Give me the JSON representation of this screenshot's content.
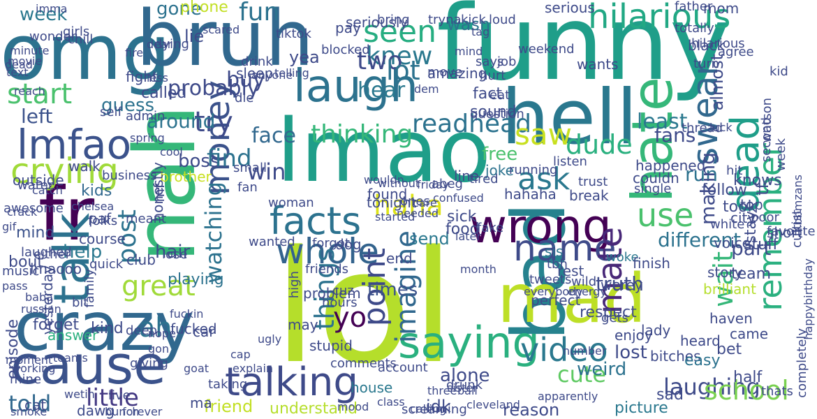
{
  "words": [
    {
      "text": "funny",
      "color": "#1f9e89"
    },
    {
      "text": "omg",
      "color": "#2c728e"
    },
    {
      "text": "bruh",
      "color": "#31688e"
    },
    {
      "text": "lmao",
      "color": "#1f9e89"
    },
    {
      "text": "lol",
      "color": "#b5de2b"
    },
    {
      "text": "crazy",
      "color": "#31688e"
    },
    {
      "text": "nah",
      "color": "#35b779"
    },
    {
      "text": "bad",
      "color": "#26828e"
    },
    {
      "text": "hell",
      "color": "#2a788e"
    },
    {
      "text": "fr",
      "color": "#440154"
    },
    {
      "text": "mad",
      "color": "#bddf26"
    },
    {
      "text": "cause",
      "color": "#3b528b"
    },
    {
      "text": "wrong",
      "color": "#440154"
    },
    {
      "text": "hate",
      "color": "#35b779"
    },
    {
      "text": "talking",
      "color": "#3e4a89"
    },
    {
      "text": "saying",
      "color": "#2ab07f"
    },
    {
      "text": "hilarious",
      "color": "#22a884"
    },
    {
      "text": "laugh",
      "color": "#2c728e"
    },
    {
      "text": "seen",
      "color": "#26ad81"
    },
    {
      "text": "money",
      "color": "#3b528b"
    },
    {
      "text": "facts",
      "color": "#2c728e"
    },
    {
      "text": "video",
      "color": "#2a788e"
    },
    {
      "text": "lmfao",
      "color": "#3b528b"
    },
    {
      "text": "crying",
      "color": "#a0da39"
    },
    {
      "text": "talk",
      "color": "#2c728e"
    },
    {
      "text": "whole",
      "color": "#33638d"
    },
    {
      "text": "start",
      "color": "#4ac16d"
    },
    {
      "text": "probably",
      "color": "#3e4a89"
    },
    {
      "text": "knew",
      "color": "#2a788e"
    },
    {
      "text": "readhead",
      "color": "#2c728e"
    },
    {
      "text": "dude",
      "color": "#2ab07f"
    },
    {
      "text": "swear",
      "color": "#31688e"
    },
    {
      "text": "dead",
      "color": "#1f9e89"
    },
    {
      "text": "remember",
      "color": "#2ab07f"
    },
    {
      "text": "great",
      "color": "#a0da39"
    },
    {
      "text": "name",
      "color": "#3e4a89"
    },
    {
      "text": "ask",
      "color": "#2a788e"
    },
    {
      "text": "week",
      "color": "#2a788e"
    },
    {
      "text": "fun",
      "color": "#2c728e"
    },
    {
      "text": "use",
      "color": "#4ac16d"
    },
    {
      "text": "cute",
      "color": "#5ec962"
    },
    {
      "text": "laughing",
      "color": "#3e4a89"
    },
    {
      "text": "told",
      "color": "#31688e"
    },
    {
      "text": "little",
      "color": "#443983"
    },
    {
      "text": "haha",
      "color": "#dde318"
    },
    {
      "text": "wait",
      "color": "#35b779"
    },
    {
      "text": "try",
      "color": "#3e4a89"
    },
    {
      "text": "face",
      "color": "#31688e"
    },
    {
      "text": "two",
      "color": "#3e4a89"
    },
    {
      "text": "hear",
      "color": "#2a788e"
    },
    {
      "text": "saw",
      "color": "#c8e020"
    },
    {
      "text": "win",
      "color": "#3e4a89"
    },
    {
      "text": "left",
      "color": "#3b528b"
    },
    {
      "text": "guess",
      "color": "#2c728e"
    },
    {
      "text": "lot",
      "color": "#2c728e"
    },
    {
      "text": "mate",
      "color": "#482878"
    },
    {
      "text": "post",
      "color": "#2c728e"
    },
    {
      "text": "kids",
      "color": "#31688e"
    },
    {
      "text": "ah",
      "color": "#2c728e"
    },
    {
      "text": "understand",
      "color": "#b5de2b"
    },
    {
      "text": "friend",
      "color": "#c2df23"
    },
    {
      "text": "imagine",
      "color": "#31688e"
    },
    {
      "text": "point",
      "color": "#3e4a89"
    },
    {
      "text": "things",
      "color": "#2c728e"
    },
    {
      "text": "yo",
      "color": "#440154"
    },
    {
      "text": "watching",
      "color": "#2c728e"
    },
    {
      "text": "school",
      "color": "#7ad151"
    },
    {
      "text": "thinking",
      "color": "#35b779"
    },
    {
      "text": "around",
      "color": "#2c728e"
    },
    {
      "text": "boss",
      "color": "#3e4a89"
    },
    {
      "text": "find",
      "color": "#2c728e"
    },
    {
      "text": "fans",
      "color": "#3e4a89"
    },
    {
      "text": "least",
      "color": "#2a788e"
    },
    {
      "text": "mind",
      "color": "#3b528b"
    },
    {
      "text": "help",
      "color": "#2a788e"
    },
    {
      "text": "hair",
      "color": "#3e4a89"
    },
    {
      "text": "end",
      "color": "#3e4a89"
    },
    {
      "text": "times",
      "color": "#3b528b"
    },
    {
      "text": "send",
      "color": "#2a788e"
    },
    {
      "text": "different",
      "color": "#2c728e"
    },
    {
      "text": "part",
      "color": "#3e4a89"
    },
    {
      "text": "run",
      "color": "#2c728e"
    },
    {
      "text": "buy",
      "color": "#3e4a89"
    },
    {
      "text": "gone",
      "color": "#2c728e"
    },
    {
      "text": "phone",
      "color": "#c2df23"
    },
    {
      "text": "wasn",
      "color": "#2c728e"
    },
    {
      "text": "bout",
      "color": "#3e4a89"
    },
    {
      "text": "brother",
      "color": "#c8e020"
    },
    {
      "text": "stupid",
      "color": "#3e4a89"
    },
    {
      "text": "playing",
      "color": "#2c728e"
    },
    {
      "text": "alone",
      "color": "#3e4a89"
    },
    {
      "text": "idk",
      "color": "#3e4a89"
    },
    {
      "text": "house",
      "color": "#2a788e"
    },
    {
      "text": "weird",
      "color": "#2c728e"
    },
    {
      "text": "bitches",
      "color": "#3e4a89"
    },
    {
      "text": "half",
      "color": "#3e4a89"
    },
    {
      "text": "picture",
      "color": "#2a788e"
    },
    {
      "text": "reason",
      "color": "#3e4a89"
    },
    {
      "text": "lost",
      "color": "#3e4a89"
    },
    {
      "text": "enjoy",
      "color": "#3e4a89"
    },
    {
      "text": "brilliant",
      "color": "#b5de2b"
    },
    {
      "text": "woke",
      "color": "#2a788e"
    },
    {
      "text": "sis",
      "color": "#2c728e"
    },
    {
      "text": "truth",
      "color": "#3e4a89"
    },
    {
      "text": "follow",
      "color": "#3e4a89"
    },
    {
      "text": "sad",
      "color": "#3e4a89"
    },
    {
      "text": "easy",
      "color": "#2c728e"
    },
    {
      "text": "job",
      "color": "#3e4a89"
    },
    {
      "text": "fake",
      "color": "#3e4a89"
    },
    {
      "text": "food",
      "color": "#3e4a89"
    },
    {
      "text": "sick",
      "color": "#3e4a89"
    },
    {
      "text": "sound",
      "color": "#3e4a89"
    },
    {
      "text": "free",
      "color": "#4ac16d"
    },
    {
      "text": "joke",
      "color": "#2c728e"
    },
    {
      "text": "tired",
      "color": "#3e4a89"
    },
    {
      "text": "hurt",
      "color": "#3e4a89"
    },
    {
      "text": "says",
      "color": "#3e4a89"
    },
    {
      "text": "fact",
      "color": "#3e4a89"
    },
    {
      "text": "mf",
      "color": "#3e4a89"
    },
    {
      "text": "honestly",
      "color": "#3e4a89"
    },
    {
      "text": "called",
      "color": "#3e4a89"
    },
    {
      "text": "cool",
      "color": "#3e4a89"
    },
    {
      "text": "small",
      "color": "#3e4a89"
    },
    {
      "text": "fan",
      "color": "#3e4a89"
    },
    {
      "text": "wanted",
      "color": "#3e4a89"
    },
    {
      "text": "woman",
      "color": "#3e4a89"
    },
    {
      "text": "lose",
      "color": "#3e4a89"
    },
    {
      "text": "lmaooo",
      "color": "#3e4a89"
    },
    {
      "text": "answer",
      "color": "#2ab07f"
    },
    {
      "text": "forget",
      "color": "#3e4a89"
    },
    {
      "text": "bit",
      "color": "#3e4a89"
    },
    {
      "text": "kind",
      "color": "#3e4a89"
    },
    {
      "text": "car",
      "color": "#3e4a89"
    },
    {
      "text": "wetin",
      "color": "#3e4a89"
    },
    {
      "text": "dawg",
      "color": "#3e4a89"
    },
    {
      "text": "may",
      "color": "#3e4a89"
    },
    {
      "text": "problem",
      "color": "#3e4a89"
    },
    {
      "text": "high",
      "color": "#3e4a89"
    },
    {
      "text": "friends",
      "color": "#3e4a89"
    },
    {
      "text": "comments",
      "color": "#3e4a89"
    },
    {
      "text": "drunk",
      "color": "#3e4a89"
    },
    {
      "text": "account",
      "color": "#3e4a89"
    },
    {
      "text": "taking",
      "color": "#3e4a89"
    },
    {
      "text": "ma",
      "color": "#3e4a89"
    },
    {
      "text": "eat",
      "color": "#3e4a89"
    },
    {
      "text": "thats",
      "color": "#3e4a89"
    },
    {
      "text": "heard",
      "color": "#3e4a89"
    },
    {
      "text": "bet",
      "color": "#3e4a89"
    },
    {
      "text": "came",
      "color": "#3e4a89"
    },
    {
      "text": "haven",
      "color": "#3e4a89"
    },
    {
      "text": "team",
      "color": "#3e4a89"
    },
    {
      "text": "stay",
      "color": "#3e4a89"
    },
    {
      "text": "top",
      "color": "#3e4a89"
    },
    {
      "text": "hit",
      "color": "#3e4a89"
    },
    {
      "text": "mom",
      "color": "#3e4a89"
    },
    {
      "text": "black",
      "color": "#3e4a89"
    },
    {
      "text": "agree",
      "color": "#3e4a89"
    },
    {
      "text": "story",
      "color": "#3e4a89"
    },
    {
      "text": "stuff",
      "color": "#3e4a89"
    },
    {
      "text": "took",
      "color": "#3e4a89"
    },
    {
      "text": "knows",
      "color": "#3e4a89"
    },
    {
      "text": "happened",
      "color": "#3e4a89"
    },
    {
      "text": "making",
      "color": "#3e4a89"
    },
    {
      "text": "tf",
      "color": "#3e4a89"
    },
    {
      "text": "city",
      "color": "#3e4a89"
    },
    {
      "text": "wants",
      "color": "#3e4a89"
    },
    {
      "text": "weekend",
      "color": "#3e4a89"
    },
    {
      "text": "question",
      "color": "#3e4a89"
    },
    {
      "text": "seriously",
      "color": "#3e4a89"
    },
    {
      "text": "blocked",
      "color": "#3e4a89"
    },
    {
      "text": "pay",
      "color": "#3e4a89"
    },
    {
      "text": "yea",
      "color": "#3e4a89"
    },
    {
      "text": "lie",
      "color": "#3e4a89"
    },
    {
      "text": "sleep",
      "color": "#3e4a89"
    },
    {
      "text": "die",
      "color": "#3e4a89"
    },
    {
      "text": "drink",
      "color": "#3e4a89"
    },
    {
      "text": "chill",
      "color": "#3e4a89"
    },
    {
      "text": "girls",
      "color": "#3e4a89"
    },
    {
      "text": "wonder",
      "color": "#3e4a89"
    },
    {
      "text": "outside",
      "color": "#3e4a89"
    },
    {
      "text": "course",
      "color": "#3e4a89"
    },
    {
      "text": "walk",
      "color": "#3e4a89"
    },
    {
      "text": "either",
      "color": "#3e4a89"
    },
    {
      "text": "club",
      "color": "#3e4a89"
    },
    {
      "text": "folks",
      "color": "#3e4a89"
    },
    {
      "text": "yesterday",
      "color": "#3e4a89"
    },
    {
      "text": "episode",
      "color": "#3e4a89"
    },
    {
      "text": "mine",
      "color": "#3e4a89"
    },
    {
      "text": "live",
      "color": "#3e4a89"
    },
    {
      "text": "giving",
      "color": "#3e4a89"
    },
    {
      "text": "cat",
      "color": "#3e4a89"
    },
    {
      "text": "deep",
      "color": "#3e4a89"
    },
    {
      "text": "fucked",
      "color": "#3e4a89"
    },
    {
      "text": "respect",
      "color": "#3e4a89"
    },
    {
      "text": "werey",
      "color": "#3e4a89"
    },
    {
      "text": "perfect",
      "color": "#3e4a89"
    },
    {
      "text": "tweets",
      "color": "#3e4a89"
    },
    {
      "text": "wild",
      "color": "#3e4a89"
    },
    {
      "text": "tbh",
      "color": "#3e4a89"
    },
    {
      "text": "rest",
      "color": "#3e4a89"
    },
    {
      "text": "dog",
      "color": "#3e4a89"
    },
    {
      "text": "forgot",
      "color": "#3e4a89"
    },
    {
      "text": "hours",
      "color": "#3e4a89"
    },
    {
      "text": "cuz",
      "color": "#3e4a89"
    },
    {
      "text": "gets",
      "color": "#3e4a89"
    },
    {
      "text": "lady",
      "color": "#3e4a89"
    },
    {
      "text": "voice",
      "color": "#3e4a89"
    },
    {
      "text": "white",
      "color": "#3e4a89"
    },
    {
      "text": "poor",
      "color": "#3e4a89"
    },
    {
      "text": "short",
      "color": "#3e4a89"
    },
    {
      "text": "favorite",
      "color": "#3e4a89"
    },
    {
      "text": "finish",
      "color": "#3e4a89"
    },
    {
      "text": "couldn",
      "color": "#3e4a89"
    },
    {
      "text": "single",
      "color": "#3e4a89"
    },
    {
      "text": "trust",
      "color": "#3e4a89"
    },
    {
      "text": "break",
      "color": "#3e4a89"
    },
    {
      "text": "hahaha",
      "color": "#3e4a89"
    },
    {
      "text": "line",
      "color": "#3e4a89"
    },
    {
      "text": "abeg",
      "color": "#3e4a89"
    },
    {
      "text": "found",
      "color": "#3e4a89"
    },
    {
      "text": "wouldn",
      "color": "#3e4a89"
    },
    {
      "text": "started",
      "color": "#3e4a89"
    },
    {
      "text": "tonight",
      "color": "#3e4a89"
    },
    {
      "text": "without",
      "color": "#3e4a89"
    },
    {
      "text": "bring",
      "color": "#3e4a89"
    },
    {
      "text": "tryna",
      "color": "#3e4a89"
    },
    {
      "text": "kick",
      "color": "#3e4a89"
    },
    {
      "text": "loud",
      "color": "#3e4a89"
    },
    {
      "text": "serious",
      "color": "#3e4a89"
    },
    {
      "text": "father",
      "color": "#3e4a89"
    },
    {
      "text": "totally",
      "color": "#3e4a89"
    },
    {
      "text": "kid",
      "color": "#3e4a89"
    },
    {
      "text": "second",
      "color": "#3e4a89"
    },
    {
      "text": "almost",
      "color": "#3e4a89"
    },
    {
      "text": "turn",
      "color": "#3e4a89"
    },
    {
      "text": "hilarious",
      "color": "#3e4a89"
    },
    {
      "text": "luck",
      "color": "#3e4a89"
    },
    {
      "text": "thread",
      "color": "#3e4a89"
    },
    {
      "text": "week",
      "color": "#3e4a89"
    },
    {
      "text": "bbmzans",
      "color": "#3e4a89"
    },
    {
      "text": "cultist",
      "color": "#3e4a89"
    },
    {
      "text": "watson",
      "color": "#3e4a89"
    },
    {
      "text": "happybirthday",
      "color": "#3e4a89"
    },
    {
      "text": "completely",
      "color": "#3e4a89"
    },
    {
      "text": "music",
      "color": "#3e4a89"
    },
    {
      "text": "pass",
      "color": "#3e4a89"
    },
    {
      "text": "meant",
      "color": "#3e4a89"
    },
    {
      "text": "quick",
      "color": "#3e4a89"
    },
    {
      "text": "paf",
      "color": "#3e4a89"
    },
    {
      "text": "family",
      "color": "#3e4a89"
    },
    {
      "text": "laughed",
      "color": "#3e4a89"
    },
    {
      "text": "gif",
      "color": "#3e4a89"
    },
    {
      "text": "water",
      "color": "#3e4a89"
    },
    {
      "text": "crack",
      "color": "#3e4a89"
    },
    {
      "text": "awesome",
      "color": "#3e4a89"
    },
    {
      "text": "chelsea",
      "color": "#3e4a89"
    },
    {
      "text": "catch",
      "color": "#3e4a89"
    },
    {
      "text": "business",
      "color": "#3e4a89"
    },
    {
      "text": "spring",
      "color": "#3e4a89"
    },
    {
      "text": "admin",
      "color": "#3e4a89"
    },
    {
      "text": "self",
      "color": "#3e4a89"
    },
    {
      "text": "fight",
      "color": "#3e4a89"
    },
    {
      "text": "less",
      "color": "#3e4a89"
    },
    {
      "text": "fire",
      "color": "#3e4a89"
    },
    {
      "text": "dear",
      "color": "#3e4a89"
    },
    {
      "text": "dying",
      "color": "#3e4a89"
    },
    {
      "text": "reach",
      "color": "#3e4a89"
    },
    {
      "text": "minute",
      "color": "#3e4a89"
    },
    {
      "text": "movie",
      "color": "#3e4a89"
    },
    {
      "text": "text",
      "color": "#3e4a89"
    },
    {
      "text": "dead",
      "color": "#3e4a89"
    },
    {
      "text": "imma",
      "color": "#3e4a89"
    },
    {
      "text": "scared",
      "color": "#3e4a89"
    },
    {
      "text": "tiktok",
      "color": "#3e4a89"
    },
    {
      "text": "anyone",
      "color": "#3e4a89"
    },
    {
      "text": "telling",
      "color": "#3e4a89"
    },
    {
      "text": "dem",
      "color": "#3e4a89"
    },
    {
      "text": "amazing",
      "color": "#3e4a89"
    },
    {
      "text": "move",
      "color": "#3e4a89"
    },
    {
      "text": "tag",
      "color": "#3e4a89"
    },
    {
      "text": "mind",
      "color": "#3e4a89"
    },
    {
      "text": "running",
      "color": "#3e4a89"
    },
    {
      "text": "listen",
      "color": "#3e4a89"
    },
    {
      "text": "friday",
      "color": "#3e4a89"
    },
    {
      "text": "ones",
      "color": "#3e4a89"
    },
    {
      "text": "needed",
      "color": "#3e4a89"
    },
    {
      "text": "care",
      "color": "#3e4a89"
    },
    {
      "text": "confused",
      "color": "#3e4a89"
    },
    {
      "text": "later",
      "color": "#3e4a89"
    },
    {
      "text": "month",
      "color": "#3e4a89"
    },
    {
      "text": "everybody",
      "color": "#3e4a89"
    },
    {
      "text": "energy",
      "color": "#3e4a89"
    },
    {
      "text": "number",
      "color": "#3e4a89"
    },
    {
      "text": "apparently",
      "color": "#3e4a89"
    },
    {
      "text": "cleveland",
      "color": "#3e4a89"
    },
    {
      "text": "sister",
      "color": "#3e4a89"
    },
    {
      "text": "ball",
      "color": "#3e4a89"
    },
    {
      "text": "three",
      "color": "#3e4a89"
    },
    {
      "text": "class",
      "color": "#3e4a89"
    },
    {
      "text": "mood",
      "color": "#3e4a89"
    },
    {
      "text": "screaming",
      "color": "#3e4a89"
    },
    {
      "text": "calling",
      "color": "#3e4a89"
    },
    {
      "text": "bunch",
      "color": "#3e4a89"
    },
    {
      "text": "smoke",
      "color": "#3e4a89"
    },
    {
      "text": "forever",
      "color": "#3e4a89"
    },
    {
      "text": "explain",
      "color": "#3e4a89"
    },
    {
      "text": "goat",
      "color": "#3e4a89"
    },
    {
      "text": "gon",
      "color": "#3e4a89"
    },
    {
      "text": "cap",
      "color": "#3e4a89"
    },
    {
      "text": "ugly",
      "color": "#3e4a89"
    },
    {
      "text": "nope",
      "color": "#3e4a89"
    },
    {
      "text": "fuckin",
      "color": "#3e4a89"
    },
    {
      "text": "moment",
      "color": "#3e4a89"
    },
    {
      "text": "teams",
      "color": "#3e4a89"
    },
    {
      "text": "baba",
      "color": "#3e4a89"
    },
    {
      "text": "working",
      "color": "#3e4a89"
    },
    {
      "text": "russian",
      "color": "#3e4a89"
    }
  ]
}
